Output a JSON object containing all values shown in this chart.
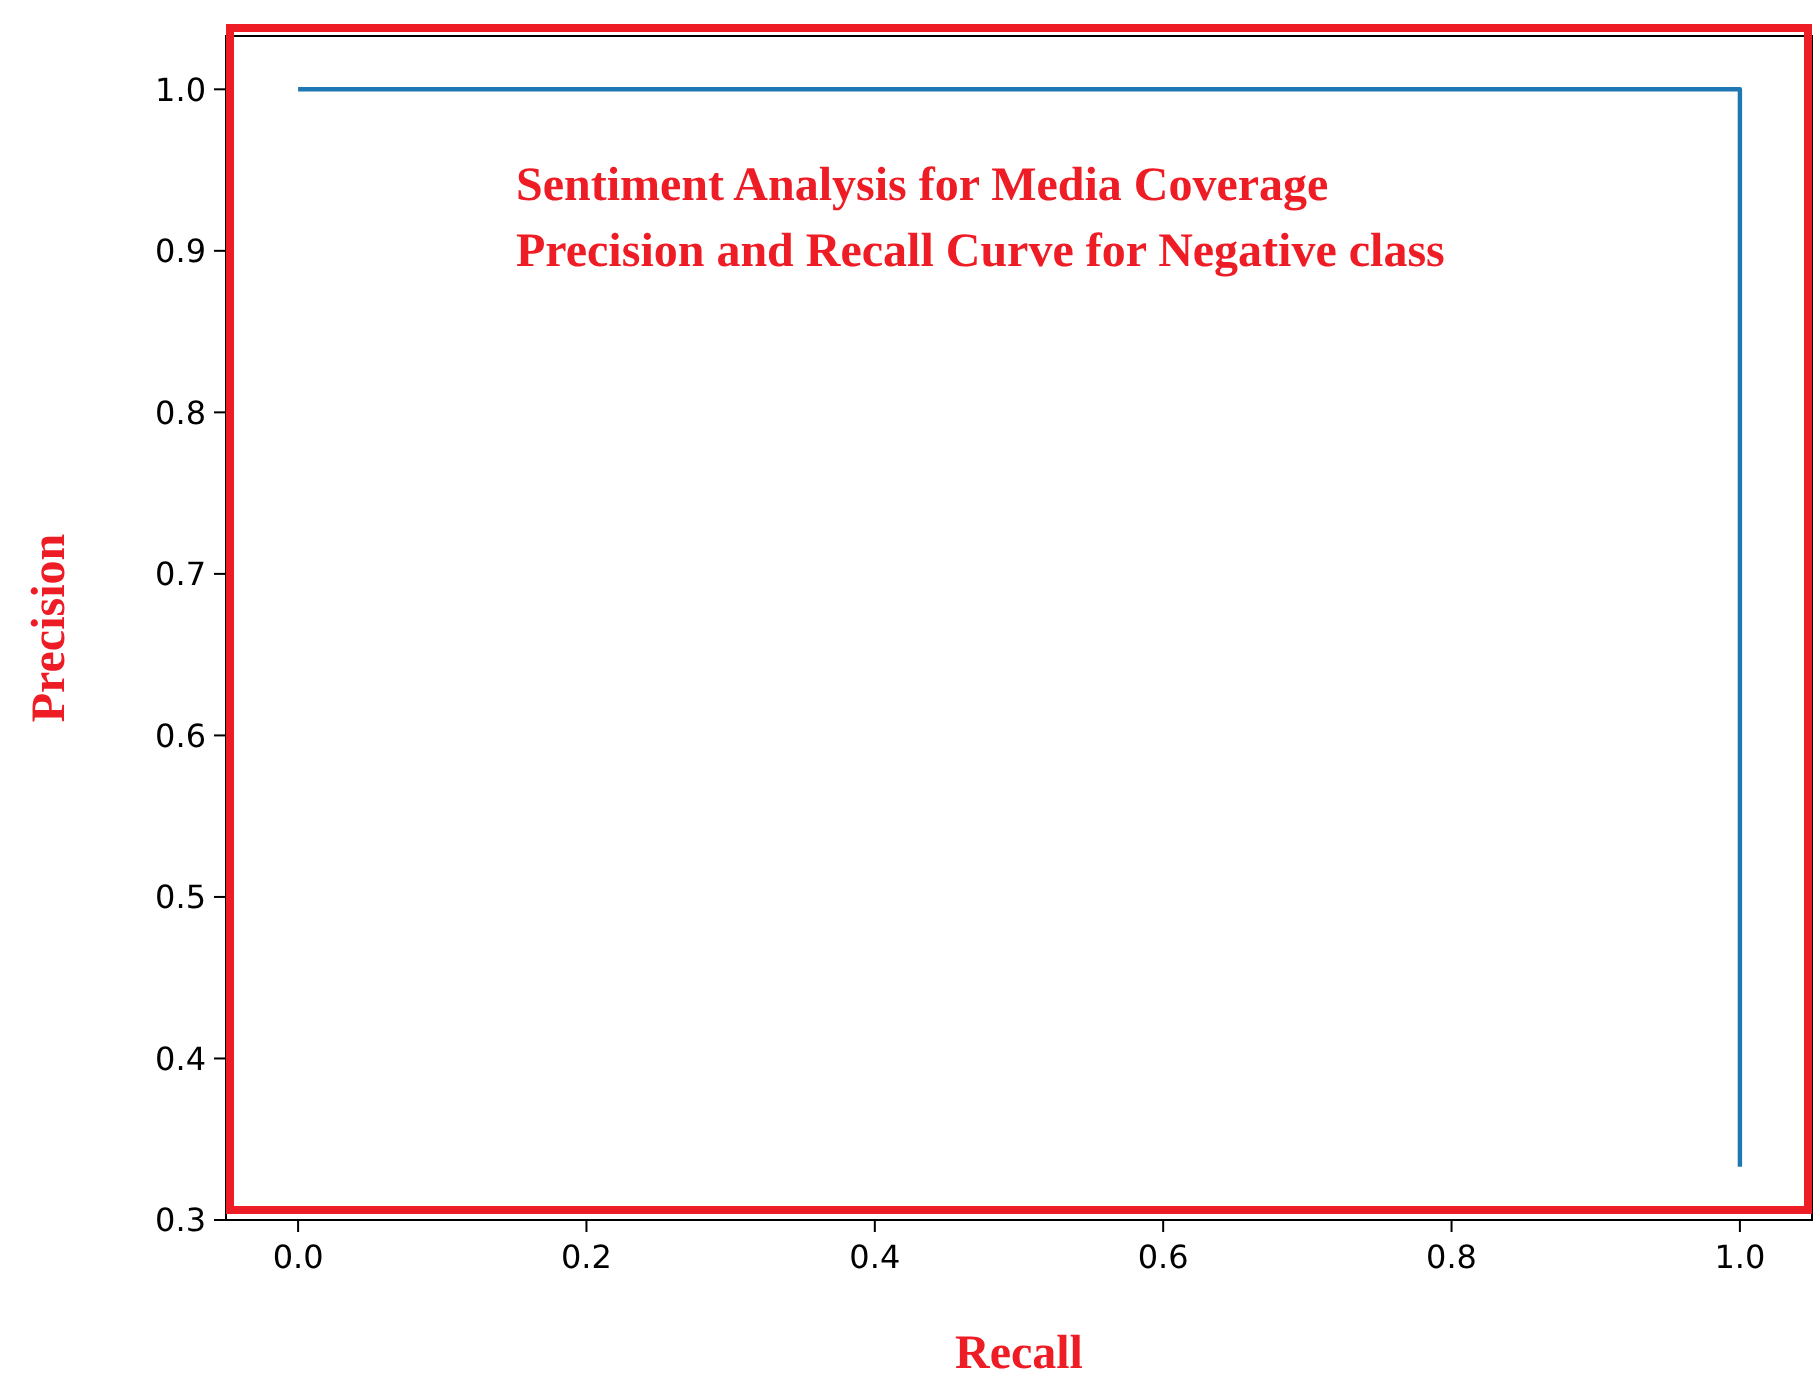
{
  "chart_data": {
    "type": "step",
    "title": "Sentiment Analysis for Media Coverage",
    "subtitle": "Precision and Recall Curve for Negative class",
    "xlabel": "Recall",
    "ylabel": "Precision",
    "x": [
      0,
      1
    ],
    "series": [
      {
        "color": "#1f77b4",
        "values": [
          1,
          0.333
        ]
      }
    ],
    "xlim": [
      -0.05,
      1.05
    ],
    "ylim": [
      0.3,
      1.033
    ],
    "xticks": [
      {
        "value": 0,
        "label": "0.0"
      },
      0.2,
      0.4,
      0.6,
      0.8,
      {
        "value": 1,
        "label": "1.0"
      }
    ],
    "yticks": [
      0.3,
      0.4,
      0.5,
      0.6,
      0.7,
      0.8,
      0.9,
      {
        "value": 1,
        "label": "1.0"
      }
    ],
    "grid": false,
    "marker": "none",
    "line_style": "solid"
  }
}
